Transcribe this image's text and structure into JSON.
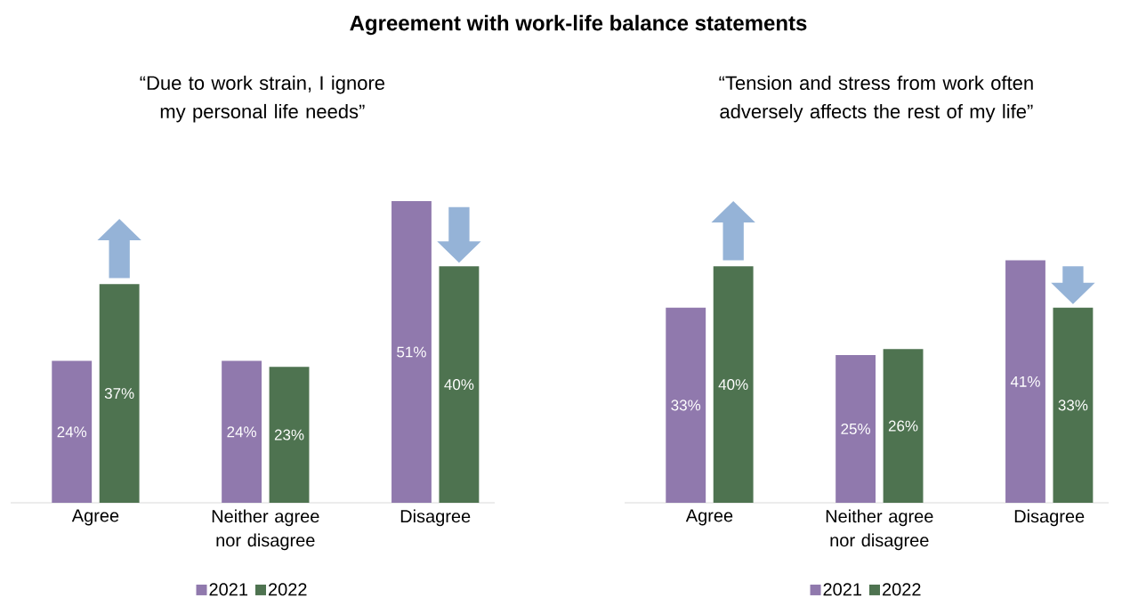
{
  "chart_data": [
    {
      "type": "bar",
      "title": "Agreement with work-life balance statements",
      "subtitle": "“Due to work strain, I ignore my personal life needs”",
      "categories": [
        "Agree",
        "Neither agree nor disagree",
        "Disagree"
      ],
      "legend": "bottom",
      "series": [
        {
          "name": "2021",
          "color": "#9079ad",
          "values": [
            24,
            24,
            51
          ],
          "value_labels": [
            "24%",
            "24%",
            "51%"
          ]
        },
        {
          "name": "2022",
          "color": "#4e7350",
          "values": [
            37,
            23,
            40
          ],
          "value_labels": [
            "37%",
            "23%",
            "40%"
          ]
        }
      ]
    },
    {
      "type": "bar",
      "subtitle": "“Tension and stress from work often adversely affects the rest of my life”",
      "categories": [
        "Agree",
        "Neither agree nor disagree",
        "Disagree"
      ],
      "legend": "bottom",
      "series": [
        {
          "name": "2021",
          "color": "#9079ad",
          "values": [
            33,
            25,
            41
          ],
          "value_labels": [
            "33%",
            "25%",
            "41%"
          ]
        },
        {
          "name": "2022",
          "color": "#4e7350",
          "values": [
            40,
            26,
            33
          ],
          "value_labels": [
            "40%",
            "26%",
            "33%"
          ]
        }
      ]
    }
  ]
}
